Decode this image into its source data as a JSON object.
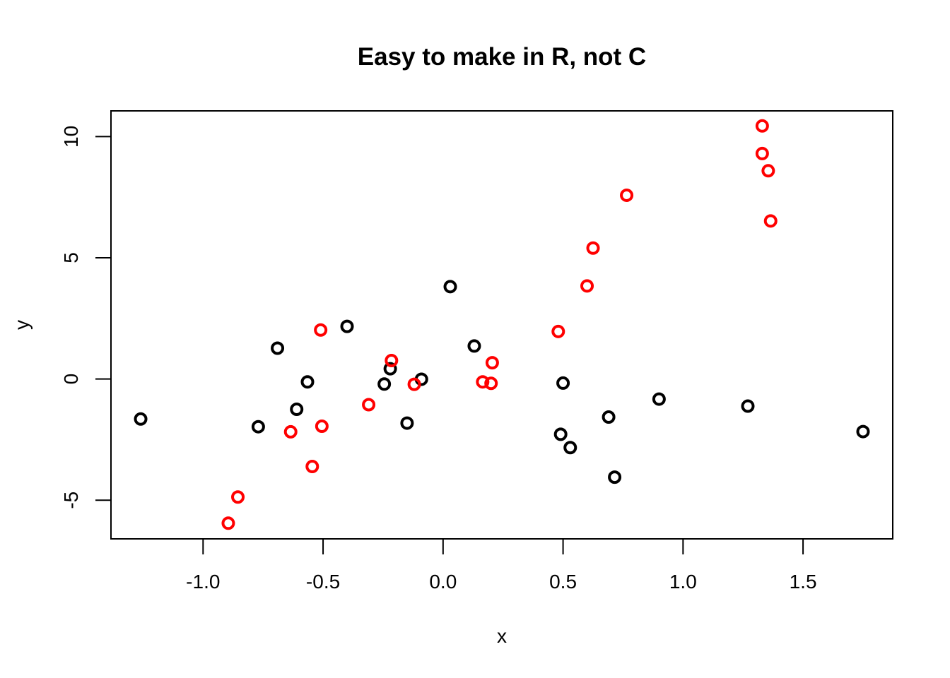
{
  "chart_data": {
    "type": "scatter",
    "title": "Easy to make in R, not C",
    "xlabel": "x",
    "ylabel": "y",
    "xlim": [
      -1.3838,
      1.8738
    ],
    "ylim": [
      -6.5968,
      11.0608
    ],
    "xticks": [
      -1.0,
      -0.5,
      0.0,
      0.5,
      1.0,
      1.5
    ],
    "xtick_labels": [
      "-1.0",
      "-0.5",
      "0.0",
      "0.5",
      "1.0",
      "1.5"
    ],
    "yticks": [
      -5,
      0,
      5,
      10
    ],
    "ytick_labels": [
      "-5",
      "0",
      "5",
      "10"
    ],
    "grid": false,
    "series": [
      {
        "name": "black",
        "color": "#000000",
        "points": [
          [
            -1.26,
            -1.65
          ],
          [
            -0.77,
            -1.97
          ],
          [
            -0.69,
            1.27
          ],
          [
            -0.61,
            -1.25
          ],
          [
            -0.565,
            -0.12
          ],
          [
            -0.4,
            2.17
          ],
          [
            -0.22,
            0.42
          ],
          [
            -0.245,
            -0.21
          ],
          [
            -0.15,
            -1.82
          ],
          [
            -0.09,
            -0.01
          ],
          [
            0.03,
            3.81
          ],
          [
            0.13,
            1.36
          ],
          [
            0.49,
            -2.28
          ],
          [
            0.5,
            -0.17
          ],
          [
            0.53,
            -2.83
          ],
          [
            0.69,
            -1.57
          ],
          [
            0.715,
            -4.05
          ],
          [
            0.9,
            -0.83
          ],
          [
            1.27,
            -1.12
          ],
          [
            1.75,
            -2.17
          ]
        ]
      },
      {
        "name": "red",
        "color": "#ff0000",
        "points": [
          [
            -0.895,
            -5.95
          ],
          [
            -0.855,
            -4.87
          ],
          [
            -0.635,
            -2.18
          ],
          [
            -0.545,
            -3.61
          ],
          [
            -0.51,
            2.02
          ],
          [
            -0.505,
            -1.95
          ],
          [
            -0.31,
            -1.06
          ],
          [
            -0.215,
            0.76
          ],
          [
            -0.12,
            -0.22
          ],
          [
            0.165,
            -0.12
          ],
          [
            0.2,
            -0.18
          ],
          [
            0.205,
            0.67
          ],
          [
            0.48,
            1.96
          ],
          [
            0.6,
            3.84
          ],
          [
            0.625,
            5.4
          ],
          [
            0.765,
            7.58
          ],
          [
            1.33,
            10.44
          ],
          [
            1.33,
            9.3
          ],
          [
            1.355,
            8.59
          ],
          [
            1.365,
            6.52
          ]
        ]
      }
    ]
  }
}
